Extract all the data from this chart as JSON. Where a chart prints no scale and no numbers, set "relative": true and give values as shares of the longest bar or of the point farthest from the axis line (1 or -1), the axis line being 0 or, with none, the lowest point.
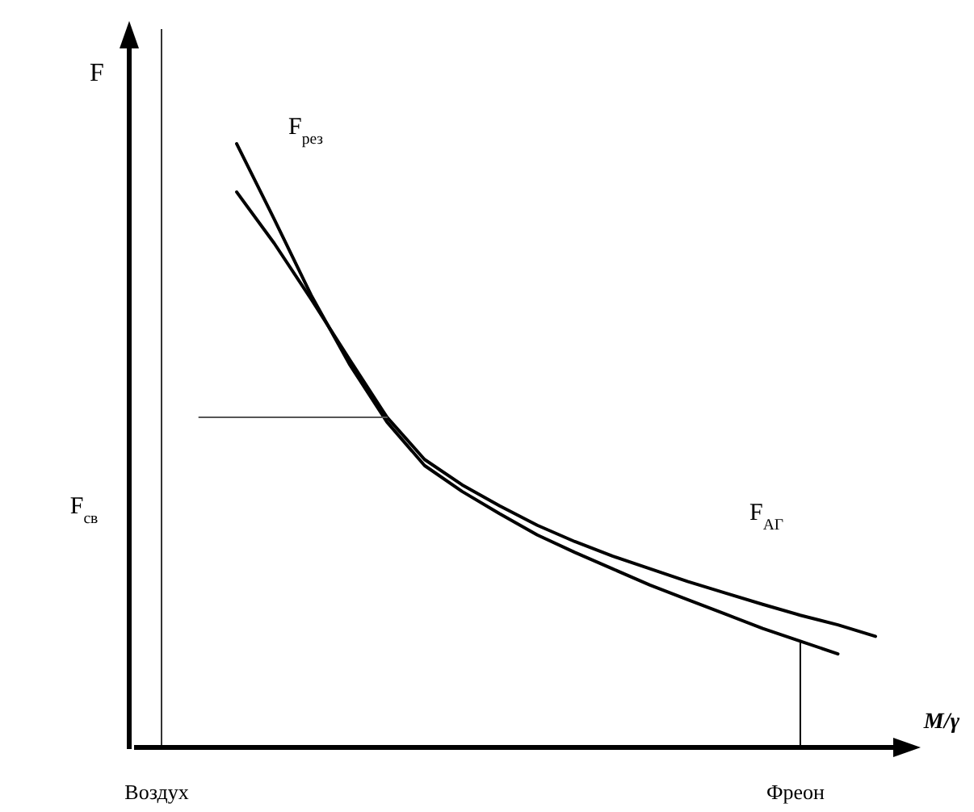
{
  "chart_data": {
    "type": "line",
    "relative": true,
    "ylabel": "F",
    "xlabel": "M/γ",
    "categories": [
      "Воздух",
      null,
      null,
      null,
      null,
      null,
      null,
      null,
      null,
      null,
      null,
      null,
      null,
      null,
      null,
      null,
      null,
      "Фреон",
      null,
      null
    ],
    "series": [
      {
        "name": "F$_{рез}$",
        "color": "#000000",
        "values": [
          null,
          null,
          1.0,
          0.875,
          0.747,
          0.635,
          0.539,
          0.467,
          0.424,
          0.387,
          0.352,
          0.323,
          0.296,
          0.269,
          0.245,
          0.221,
          0.197,
          0.176,
          0.155,
          null
        ]
      },
      {
        "name": "F$_{АГ}$",
        "color": "#000000",
        "values": [
          null,
          null,
          0.92,
          0.835,
          0.741,
          0.643,
          0.547,
          0.477,
          0.435,
          0.4,
          0.368,
          0.341,
          0.317,
          0.296,
          0.275,
          0.256,
          0.237,
          0.219,
          0.203,
          0.184
        ]
      },
      {
        "color": "#555555",
        "values": [
          null,
          0.547,
          0.547,
          0.547,
          0.547,
          0.547,
          0.547,
          null,
          null,
          null,
          null,
          null,
          null,
          null,
          null,
          null,
          null,
          null,
          null,
          null
        ]
      }
    ],
    "ref_lines": [
      {
        "axis": "x",
        "value": "Воздух",
        "color": "#333333"
      },
      {
        "axis": "x",
        "value": "Фреон",
        "color": "#000000"
      }
    ],
    "annotations": [
      "F$_{св}$"
    ],
    "marker": "none",
    "line_style": "solid",
    "grid": false,
    "legend": false
  }
}
